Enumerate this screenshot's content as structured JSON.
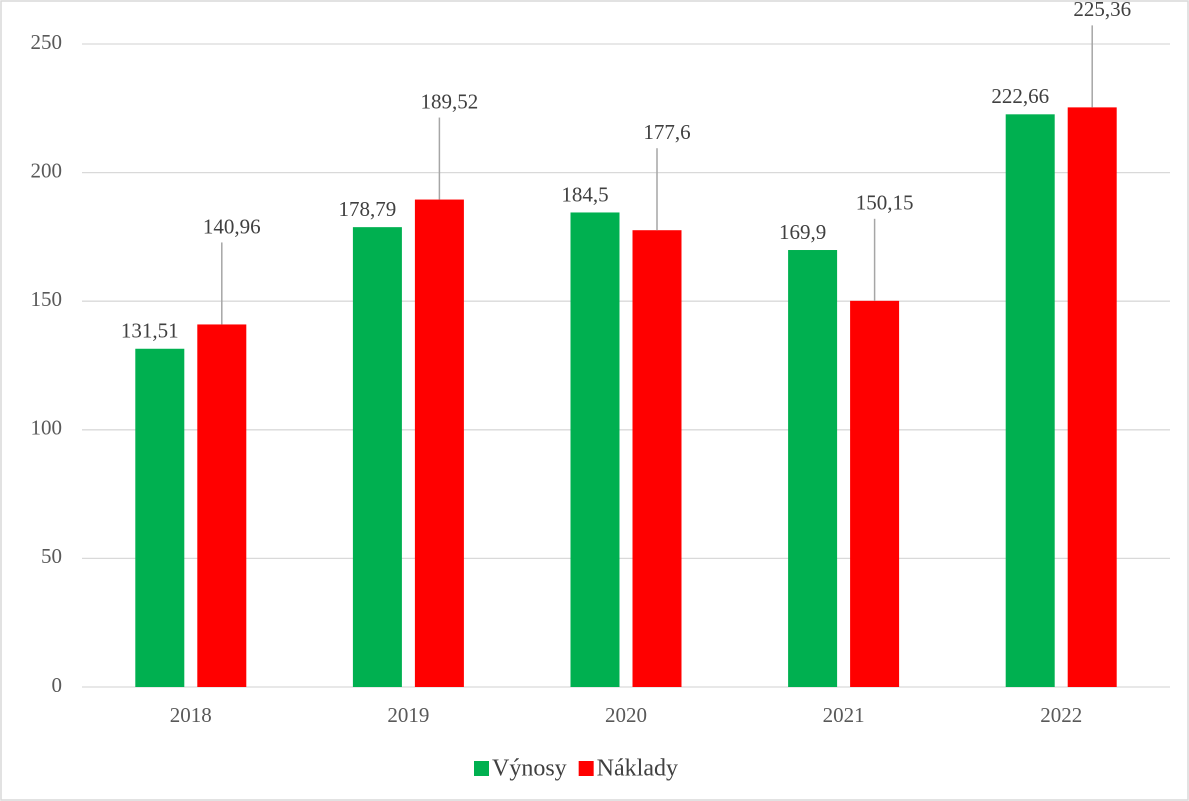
{
  "chart_data": {
    "type": "bar",
    "categories": [
      "2018",
      "2019",
      "2020",
      "2021",
      "2022"
    ],
    "series": [
      {
        "name": "Výnosy",
        "color": "#00b050",
        "values": [
          131.51,
          178.79,
          184.5,
          169.9,
          222.66
        ],
        "value_labels": [
          "131,51",
          "178,79",
          "184,5",
          "169,9",
          "222,66"
        ]
      },
      {
        "name": "Náklady",
        "color": "#ff0000",
        "values": [
          140.96,
          189.52,
          177.6,
          150.15,
          225.36
        ],
        "value_labels": [
          "140,96",
          "189,52",
          "177,6",
          "150,15",
          "225,36"
        ]
      }
    ],
    "ylim": [
      0,
      250
    ],
    "yticks": [
      0,
      50,
      100,
      150,
      200,
      250
    ],
    "grid": true,
    "legend": "bottom"
  }
}
